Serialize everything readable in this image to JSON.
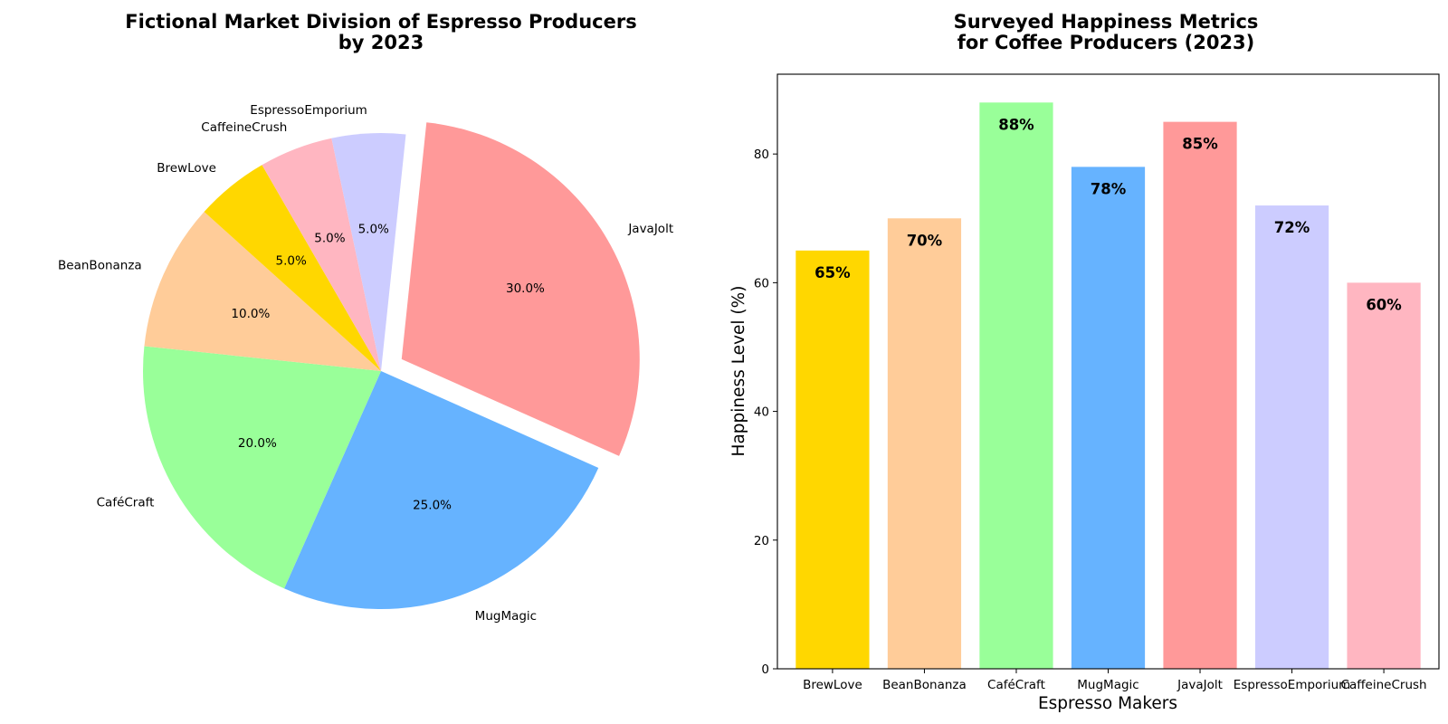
{
  "chart_data": [
    {
      "type": "pie",
      "title_lines": [
        "Fictional Market Division of Espresso Producers",
        "by 2023"
      ],
      "categories": [
        "JavaJolt",
        "MugMagic",
        "CaféCraft",
        "BeanBonanza",
        "BrewLove",
        "CaffeineCrush",
        "EspressoEmporium"
      ],
      "values": [
        30,
        25,
        20,
        10,
        5,
        5,
        5
      ],
      "percent_labels": [
        "30.0%",
        "25.0%",
        "20.0%",
        "10.0%",
        "5.0%",
        "5.0%",
        "5.0%"
      ],
      "colors": [
        "#ff9999",
        "#66b3ff",
        "#99ff99",
        "#ffcc99",
        "#ffd700",
        "#ffb6c1",
        "#ccccff"
      ],
      "exploded": [
        "JavaJolt"
      ],
      "start_angle_deg": 84,
      "direction": "clockwise"
    },
    {
      "type": "bar",
      "title_lines": [
        "Surveyed Happiness Metrics",
        "for Coffee Producers (2023)"
      ],
      "categories": [
        "BrewLove",
        "BeanBonanza",
        "CaféCraft",
        "MugMagic",
        "JavaJolt",
        "EspressoEmporium",
        "CaffeineCrush"
      ],
      "values": [
        65,
        70,
        88,
        78,
        85,
        72,
        60
      ],
      "value_labels": [
        "65%",
        "70%",
        "88%",
        "78%",
        "85%",
        "72%",
        "60%"
      ],
      "colors": [
        "#ffd700",
        "#ffcc99",
        "#99ff99",
        "#66b3ff",
        "#ff9999",
        "#ccccff",
        "#ffb6c1"
      ],
      "xlabel": "Espresso Makers",
      "ylabel": "Happiness Level (%)",
      "ylim": [
        0,
        92.4
      ],
      "yticks": [
        0,
        20,
        40,
        60,
        80
      ],
      "grid": false
    }
  ]
}
